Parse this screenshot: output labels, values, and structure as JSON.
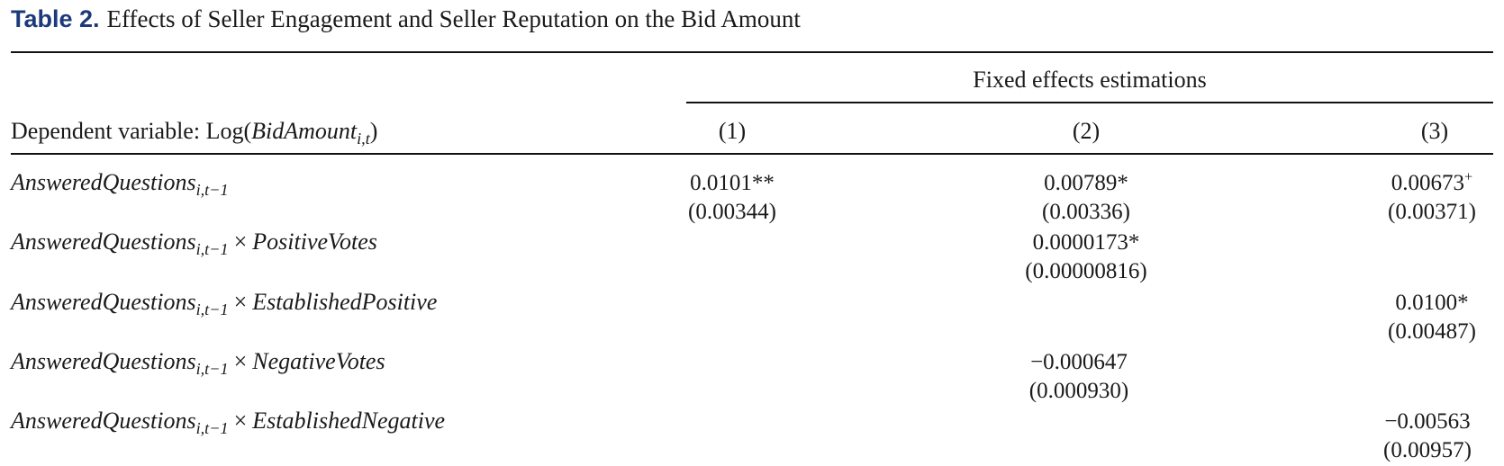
{
  "caption": {
    "label": "Table 2.",
    "title": "Effects of Seller Engagement and Seller Reputation on the Bid Amount"
  },
  "header": {
    "spanner": "Fixed effects estimations",
    "dependent_variable_prefix": "Dependent variable: Log(",
    "dependent_variable_var": "BidAmount",
    "dependent_variable_sub": "i,t",
    "dependent_variable_suffix": ")",
    "columns": [
      "(1)",
      "(2)",
      "(3)"
    ]
  },
  "rows": [
    {
      "var": "AnsweredQuestions",
      "sub": "i,t−1",
      "times": "",
      "interaction": "",
      "c1": {
        "coef": "0.0101**",
        "sig": "",
        "se": "(0.00344)"
      },
      "c2": {
        "coef": "0.00789*",
        "sig": "",
        "se": "(0.00336)"
      },
      "c3": {
        "coef": "0.00673",
        "sig": "+",
        "se": "(0.00371)"
      }
    },
    {
      "var": "AnsweredQuestions",
      "sub": "i,t−1",
      "times": "×",
      "interaction": "PositiveVotes",
      "c2": {
        "coef": "0.0000173*",
        "se": "(0.00000816)"
      }
    },
    {
      "var": "AnsweredQuestions",
      "sub": "i,t−1",
      "times": "×",
      "interaction": "EstablishedPositive",
      "c3": {
        "coef": "0.0100*",
        "se": "(0.00487)"
      }
    },
    {
      "var": "AnsweredQuestions",
      "sub": "i,t−1",
      "times": "×",
      "interaction": "NegativeVotes",
      "c2": {
        "coef": "−0.000647",
        "se": "(0.000930)"
      }
    },
    {
      "var": "AnsweredQuestions",
      "sub": "i,t−1",
      "times": "×",
      "interaction": "EstablishedNegative",
      "c3": {
        "coef": "−0.00563",
        "se": "(0.00957)"
      }
    }
  ]
}
